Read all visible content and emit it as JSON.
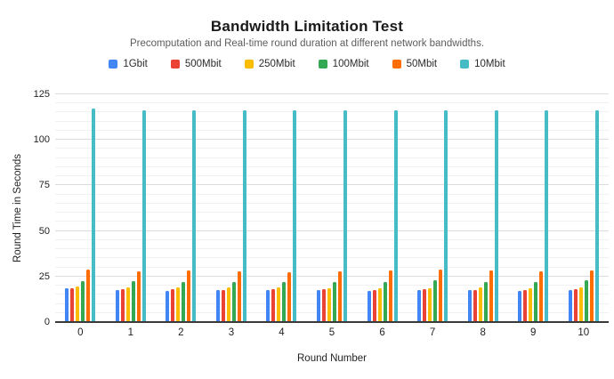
{
  "chart_data": {
    "type": "bar",
    "title": "Bandwidth Limitation Test",
    "subtitle": "Precomputation and Real-time round duration at different network bandwidths.",
    "xlabel": "Round Number",
    "ylabel": "Round Time in Seconds",
    "categories": [
      "0",
      "1",
      "2",
      "3",
      "4",
      "5",
      "6",
      "7",
      "8",
      "9",
      "10"
    ],
    "series": [
      {
        "name": "1Gbit",
        "color": "#4285F4",
        "values": [
          18.5,
          17.5,
          17.0,
          17.5,
          17.5,
          17.5,
          17.0,
          17.5,
          17.5,
          17.0,
          17.5
        ]
      },
      {
        "name": "500Mbit",
        "color": "#EA4335",
        "values": [
          18.5,
          18.0,
          18.0,
          17.5,
          18.0,
          18.0,
          17.5,
          18.0,
          17.5,
          17.5,
          18.0
        ]
      },
      {
        "name": "250Mbit",
        "color": "#FBBC04",
        "values": [
          19.5,
          19.0,
          19.0,
          19.0,
          19.0,
          18.5,
          18.5,
          18.5,
          19.0,
          18.5,
          19.0
        ]
      },
      {
        "name": "100Mbit",
        "color": "#34A853",
        "values": [
          22.5,
          22.5,
          22.0,
          22.0,
          22.0,
          22.0,
          22.0,
          23.0,
          22.0,
          22.0,
          23.0
        ]
      },
      {
        "name": "50Mbit",
        "color": "#FF6D01",
        "values": [
          29.0,
          28.0,
          28.5,
          28.0,
          27.5,
          28.0,
          28.5,
          29.0,
          28.5,
          28.0,
          28.5
        ]
      },
      {
        "name": "10Mbit",
        "color": "#46BDC6",
        "values": [
          117.0,
          116.0,
          116.0,
          116.0,
          116.0,
          116.0,
          116.0,
          116.0,
          116.0,
          116.0,
          116.0
        ]
      }
    ],
    "ylim": [
      0,
      125
    ],
    "yticks": [
      0,
      25,
      50,
      75,
      100,
      125
    ],
    "minor_gridline_step": 5,
    "grid": true,
    "legend_position": "top",
    "style": {
      "background_color": "#ffffff",
      "major_gridline_color": "#dadce0",
      "minor_gridline_color": "#f1f1f1",
      "axis_line_color": "#3a3a3a"
    }
  }
}
